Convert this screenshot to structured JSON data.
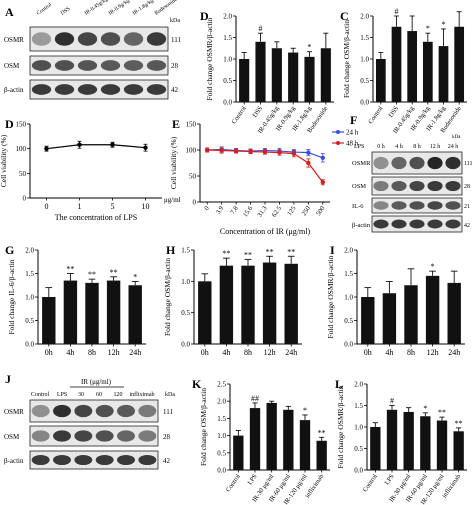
{
  "blot_A": {
    "panel_label": "A",
    "lanes": [
      "Control",
      "DSS",
      "IR-0.45g/kg",
      "IR-0.9g/kg",
      "IR-1.8g/kg",
      "Budesonide"
    ],
    "kda_label": "kDa",
    "rows": [
      {
        "name": "OSMR",
        "kda": "111",
        "intensity": [
          0.35,
          0.85,
          0.75,
          0.7,
          0.6,
          0.8
        ]
      },
      {
        "name": "OSM",
        "kda": "28",
        "intensity": [
          0.7,
          0.7,
          0.68,
          0.66,
          0.64,
          0.66
        ]
      },
      {
        "name": "β-actin",
        "kda": "42",
        "intensity": [
          0.8,
          0.8,
          0.8,
          0.8,
          0.8,
          0.8
        ]
      }
    ]
  },
  "blot_F": {
    "panel_label": "F",
    "treatment": "LPS",
    "lanes": [
      "0 h",
      "4 h",
      "8 h",
      "12 h",
      "24 h"
    ],
    "kda_label": "kDa",
    "rows": [
      {
        "name": "OSMR",
        "kda": "111",
        "intensity": [
          0.4,
          0.6,
          0.7,
          0.9,
          0.85
        ]
      },
      {
        "name": "OSM",
        "kda": "28",
        "intensity": [
          0.5,
          0.65,
          0.75,
          0.8,
          0.8
        ]
      },
      {
        "name": "IL-6",
        "kda": "21",
        "intensity": [
          0.45,
          0.65,
          0.7,
          0.75,
          0.7
        ]
      },
      {
        "name": "β-actin",
        "kda": "42",
        "intensity": [
          0.8,
          0.8,
          0.8,
          0.8,
          0.8
        ]
      }
    ]
  },
  "blot_J": {
    "panel_label": "J",
    "group_label": "IR (μg/ml)",
    "lanes": [
      "Control",
      "LPS",
      "30",
      "60",
      "120",
      "infliximab"
    ],
    "kda_label": "kDa",
    "rows": [
      {
        "name": "OSMR",
        "kda": "111",
        "intensity": [
          0.4,
          0.85,
          0.75,
          0.7,
          0.65,
          0.5
        ]
      },
      {
        "name": "OSM",
        "kda": "28",
        "intensity": [
          0.45,
          0.8,
          0.75,
          0.7,
          0.6,
          0.5
        ]
      },
      {
        "name": "β-actin",
        "kda": "42",
        "intensity": [
          0.8,
          0.8,
          0.8,
          0.8,
          0.8,
          0.8
        ]
      }
    ]
  },
  "chart_data": [
    {
      "id": "D",
      "type": "bar",
      "panel_label": "D",
      "categories": [
        "Control",
        "DSS",
        "IR-0.45g/kg",
        "IR-0.9g/kg",
        "IR-1.8g/kg",
        "Budesonide"
      ],
      "values": [
        1.0,
        1.4,
        1.25,
        1.15,
        1.05,
        1.25
      ],
      "errors": [
        0.15,
        0.2,
        0.15,
        0.1,
        0.12,
        0.35
      ],
      "annotations": [
        "",
        "#",
        "",
        "",
        "*",
        ""
      ],
      "ylabel": "Fold change OSMR/β-actin",
      "ylim": [
        0,
        2.0
      ],
      "yticks": [
        "0.0",
        "0.5",
        "1.0",
        "1.5",
        "2.0"
      ]
    },
    {
      "id": "C",
      "type": "bar",
      "panel_label": "C",
      "categories": [
        "Control",
        "DSS",
        "IR-0.45g/kg",
        "IR-0.9g/kg",
        "IR-1.8g/kg",
        "Budesonide"
      ],
      "values": [
        1.0,
        1.75,
        1.65,
        1.4,
        1.3,
        1.75
      ],
      "errors": [
        0.15,
        0.25,
        0.35,
        0.2,
        0.4,
        0.35
      ],
      "annotations": [
        "",
        "#",
        "",
        "*",
        "*",
        ""
      ],
      "ylabel": "Fold change OSM/β-actin",
      "ylim": [
        0,
        2.0
      ],
      "yticks": [
        "0.0",
        "0.5",
        "1.0",
        "1.5",
        "2.0"
      ]
    },
    {
      "id": "Dcv",
      "type": "line",
      "panel_label": "D",
      "categories": [
        "0",
        "1",
        "5",
        "10"
      ],
      "unit_label": "μg/ml",
      "series": [
        {
          "values": [
            100,
            108,
            108,
            102
          ],
          "errors": [
            5,
            7,
            5,
            7
          ]
        }
      ],
      "xlabel": "The concentration of LPS",
      "ylabel": "Cell viability (%)",
      "ylim": [
        0,
        150
      ],
      "yticks": [
        "0",
        "50",
        "100",
        "150"
      ]
    },
    {
      "id": "E",
      "type": "line",
      "panel_label": "E",
      "categories": [
        "0",
        "3.9",
        "7.8",
        "15.6",
        "31.3",
        "62.5",
        "125",
        "250",
        "500"
      ],
      "series": [
        {
          "name": "24 h",
          "color": "#3b4fd6",
          "values": [
            100,
            101,
            99,
            98,
            99,
            98,
            96,
            95,
            85
          ],
          "errors": [
            4,
            5,
            4,
            4,
            4,
            5,
            5,
            6,
            8
          ]
        },
        {
          "name": "48 h",
          "color": "#d62020",
          "values": [
            100,
            99,
            98,
            97,
            96,
            95,
            93,
            75,
            38
          ],
          "errors": [
            4,
            5,
            4,
            4,
            4,
            5,
            6,
            8,
            5
          ]
        }
      ],
      "xlabel": "Concentration of IR (μg/ml)",
      "ylabel": "Cell viability (%)",
      "ylim": [
        0,
        150
      ],
      "yticks": [
        "0",
        "50",
        "100",
        "150"
      ],
      "legend": "top-right"
    },
    {
      "id": "G",
      "type": "bar",
      "panel_label": "G",
      "categories": [
        "0h",
        "4h",
        "8h",
        "12h",
        "24h"
      ],
      "values": [
        1.0,
        1.35,
        1.3,
        1.35,
        1.25
      ],
      "errors": [
        0.2,
        0.15,
        0.08,
        0.08,
        0.08
      ],
      "annotations": [
        "",
        "**",
        "**",
        "**",
        "*"
      ],
      "ylabel": "Fold change IL-6/β-actin",
      "ylim": [
        0,
        2.0
      ],
      "yticks": [
        "0.0",
        "0.5",
        "1.0",
        "1.5",
        "2.0"
      ]
    },
    {
      "id": "H",
      "type": "bar",
      "panel_label": "H",
      "categories": [
        "0h",
        "4h",
        "8h",
        "12h",
        "24h"
      ],
      "values": [
        1.0,
        1.25,
        1.25,
        1.3,
        1.28
      ],
      "errors": [
        0.12,
        0.12,
        0.1,
        0.1,
        0.12
      ],
      "annotations": [
        "",
        "**",
        "**",
        "**",
        "**"
      ],
      "ylabel": "Fold change OSM/β-actin",
      "ylim": [
        0,
        1.5
      ],
      "yticks": [
        "0.0",
        "0.5",
        "1.0",
        "1.5"
      ]
    },
    {
      "id": "I",
      "type": "bar",
      "panel_label": "I",
      "categories": [
        "0h",
        "4h",
        "8h",
        "12h",
        "24h"
      ],
      "values": [
        1.0,
        1.08,
        1.25,
        1.45,
        1.3
      ],
      "errors": [
        0.2,
        0.25,
        0.35,
        0.1,
        0.25
      ],
      "annotations": [
        "",
        "",
        "",
        "*",
        ""
      ],
      "ylabel": "Fold change OSMR/β-actin",
      "ylim": [
        0,
        2.0
      ],
      "yticks": [
        "0.0",
        "0.5",
        "1.0",
        "1.5",
        "2.0"
      ]
    },
    {
      "id": "K",
      "type": "bar",
      "panel_label": "K",
      "categories": [
        "Control",
        "LPS",
        "IR-30 μg/ml",
        "IR-60 μg/ml",
        "IR-120 μg/ml",
        "infliximab"
      ],
      "values": [
        1.0,
        1.8,
        1.95,
        1.75,
        1.45,
        0.85
      ],
      "errors": [
        0.15,
        0.15,
        0.05,
        0.1,
        0.15,
        0.1
      ],
      "annotations": [
        "",
        "##",
        "",
        "",
        "*",
        "**"
      ],
      "ylabel": "Fold change OSM/β-actin",
      "ylim": [
        0,
        2.5
      ],
      "yticks": [
        "0.0",
        "0.5",
        "1.0",
        "1.5",
        "2.0",
        "2.5"
      ]
    },
    {
      "id": "L",
      "type": "bar",
      "panel_label": "L",
      "categories": [
        "Control",
        "LPS",
        "IR-30 μg/ml",
        "IR-60 μg/ml",
        "IR-120 μg/ml",
        "infliximab"
      ],
      "values": [
        1.0,
        1.4,
        1.35,
        1.25,
        1.15,
        0.9
      ],
      "errors": [
        0.1,
        0.1,
        0.1,
        0.08,
        0.08,
        0.08
      ],
      "annotations": [
        "",
        "#",
        "",
        "*",
        "**",
        "**"
      ],
      "ylabel": "Fold change OSMR/β-actin",
      "ylim": [
        0,
        2.0
      ],
      "yticks": [
        "0.0",
        "0.5",
        "1.0",
        "1.5",
        "2.0"
      ]
    }
  ]
}
